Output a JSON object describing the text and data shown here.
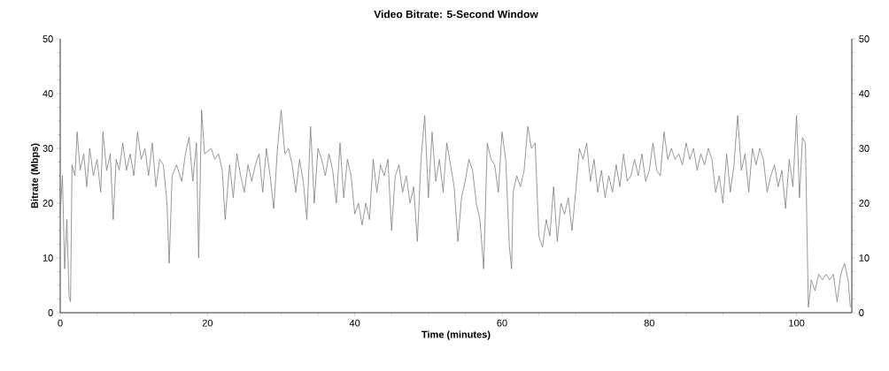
{
  "chart_data": {
    "type": "line",
    "title": "Video Bitrate: 5-Second Window",
    "xlabel": "Time (minutes)",
    "ylabel": "Bitrate (Mbps)",
    "xlim": [
      0,
      107.5
    ],
    "xticks": [
      0,
      20,
      40,
      60,
      80,
      100
    ],
    "ylim": [
      0,
      50
    ],
    "yticks": [
      0,
      10,
      20,
      30,
      40,
      50
    ],
    "y2lim": [
      0,
      50
    ],
    "y2ticks": [
      0,
      10,
      20,
      30,
      40,
      50
    ],
    "grid": false,
    "series": [
      {
        "color": "#7f7f7f",
        "x": [
          0,
          0.3,
          0.6,
          0.9,
          1.2,
          1.4,
          1.6,
          2,
          2.3,
          2.7,
          3.2,
          3.6,
          4,
          4.5,
          5,
          5.5,
          5.8,
          6.3,
          6.8,
          7.2,
          7.6,
          8,
          8.5,
          9,
          9.5,
          10,
          10.5,
          11,
          11.5,
          12,
          12.5,
          13,
          13.5,
          14,
          14.5,
          14.8,
          15.2,
          15.8,
          16.5,
          17,
          17.5,
          18,
          18.5,
          18.8,
          19.2,
          19.6,
          20.5,
          21,
          21.5,
          22,
          22.4,
          23,
          23.5,
          24,
          24.5,
          25,
          25.5,
          26,
          26.5,
          27,
          27.5,
          28,
          28.5,
          29,
          29.5,
          30,
          30.5,
          31,
          31.5,
          32,
          32.5,
          33,
          33.5,
          34,
          34.5,
          35,
          35.5,
          36,
          36.5,
          37,
          37.5,
          38,
          38.5,
          39,
          39.5,
          40,
          40.5,
          41,
          41.5,
          42,
          42.5,
          43,
          43.5,
          44,
          44.5,
          45,
          45.5,
          46,
          46.5,
          47,
          47.5,
          48,
          48.5,
          49,
          49.5,
          50,
          50.5,
          51,
          51.5,
          52,
          52.5,
          53,
          53.5,
          54,
          54.5,
          55,
          55.5,
          56,
          56.5,
          57,
          57.5,
          58,
          58.5,
          59,
          59.5,
          60,
          60.5,
          61,
          61.3,
          61.5,
          62,
          62.5,
          63,
          63.5,
          64,
          64.5,
          65,
          65.5,
          66,
          66.5,
          67,
          67.5,
          68,
          68.5,
          69,
          69.5,
          70,
          70.5,
          71,
          71.5,
          72,
          72.5,
          73,
          73.5,
          74,
          74.5,
          75,
          75.5,
          76,
          76.5,
          77,
          77.5,
          78,
          78.5,
          79,
          79.5,
          80,
          80.5,
          81,
          81.5,
          82,
          82.5,
          83,
          83.5,
          84,
          84.5,
          85,
          85.5,
          86,
          86.5,
          87,
          87.5,
          88,
          88.5,
          89,
          89.5,
          90,
          90.5,
          91,
          91.5,
          92,
          92.5,
          93,
          93.5,
          94,
          94.5,
          95,
          95.5,
          96,
          96.5,
          97,
          97.5,
          98,
          98.5,
          99,
          99.5,
          100,
          100.4,
          100.8,
          101.2,
          101.6,
          102,
          102.5,
          103,
          103.5,
          104,
          104.5,
          105,
          105.5,
          106,
          106.5,
          107,
          107.3
        ],
        "values": [
          18,
          25,
          8,
          17,
          3,
          2,
          27,
          25,
          33,
          26,
          29,
          23,
          30,
          25,
          28,
          22,
          33,
          26,
          29,
          17,
          28,
          26,
          31,
          26,
          29,
          25,
          33,
          28,
          30,
          25,
          31,
          23,
          28,
          27,
          20,
          9,
          25,
          27,
          24,
          29,
          32,
          24,
          31,
          10,
          37,
          29,
          30,
          28,
          29,
          26,
          17,
          27,
          21,
          29,
          25,
          22,
          27,
          24,
          27,
          29,
          22,
          30,
          25,
          19,
          30,
          37,
          29,
          30,
          27,
          22,
          28,
          24,
          17,
          34,
          20,
          30,
          28,
          25,
          29,
          26,
          20,
          31,
          21,
          28,
          25,
          18,
          20,
          16,
          20,
          17,
          28,
          22,
          27,
          25,
          28,
          15,
          25,
          27,
          22,
          25,
          20,
          23,
          13,
          28,
          36,
          21,
          33,
          24,
          28,
          22,
          31,
          27,
          23,
          13,
          21,
          24,
          28,
          26,
          20,
          17,
          8,
          31,
          28,
          27,
          22,
          33,
          28,
          12,
          8,
          22,
          25,
          23,
          26,
          34,
          30,
          31,
          14,
          12,
          17,
          14,
          23,
          13,
          20,
          18,
          21,
          15,
          22,
          30,
          28,
          31,
          24,
          28,
          22,
          26,
          21,
          25,
          22,
          27,
          23,
          29,
          24,
          25,
          28,
          25,
          29,
          24,
          26,
          31,
          26,
          25,
          33,
          28,
          30,
          28,
          29,
          27,
          31,
          28,
          30,
          26,
          29,
          27,
          30,
          28,
          22,
          25,
          20,
          29,
          22,
          27,
          36,
          26,
          29,
          22,
          30,
          27,
          30,
          28,
          22,
          25,
          27,
          23,
          26,
          19,
          28,
          23,
          36,
          21,
          32,
          31,
          1,
          6,
          4,
          7,
          6,
          7,
          6,
          7,
          2,
          7,
          9,
          6,
          1
        ]
      }
    ]
  }
}
